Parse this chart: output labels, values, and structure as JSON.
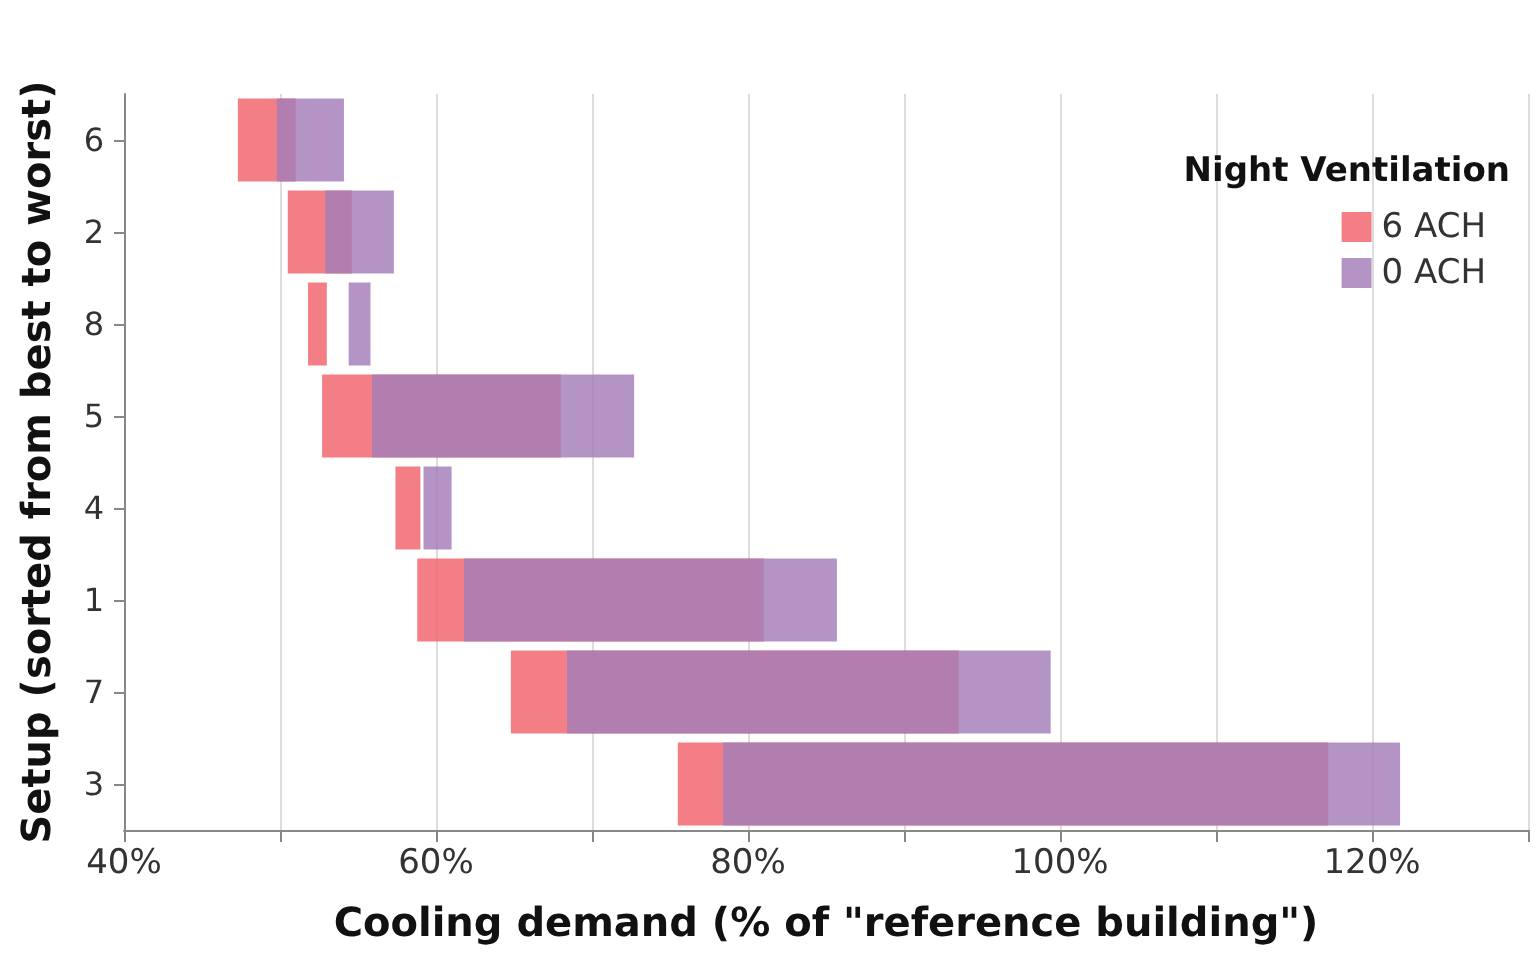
{
  "chart_data": {
    "type": "bar",
    "orientation": "horizontal",
    "xlabel": "Cooling demand (% of \"reference building\")",
    "ylabel": "Setup (sorted from best to worst)",
    "legend_title": "Night Ventilation",
    "categories": [
      "6",
      "2",
      "8",
      "5",
      "4",
      "1",
      "7",
      "3"
    ],
    "series": [
      {
        "name": "6 ACH",
        "color": "#f0626a",
        "base": [
          47.3,
          50.5,
          51.8,
          52.7,
          57.4,
          58.8,
          64.8,
          75.5
        ],
        "values": [
          3.7,
          4.1,
          1.2,
          15.3,
          1.6,
          22.2,
          28.7,
          41.7
        ]
      },
      {
        "name": "0 ACH",
        "color": "#a47cb8",
        "base": [
          49.8,
          52.9,
          54.4,
          55.9,
          59.2,
          61.8,
          68.4,
          78.4
        ],
        "values": [
          4.3,
          4.4,
          1.4,
          16.8,
          1.8,
          23.9,
          31.0,
          43.4
        ]
      }
    ],
    "xlim": [
      40,
      130
    ],
    "xticks": [
      {
        "value": 40,
        "label": "40%"
      },
      {
        "value": 50,
        "label": null
      },
      {
        "value": 60,
        "label": "60%"
      },
      {
        "value": 70,
        "label": null
      },
      {
        "value": 80,
        "label": "80%"
      },
      {
        "value": 90,
        "label": null
      },
      {
        "value": 100,
        "label": "100%"
      },
      {
        "value": 110,
        "label": null
      },
      {
        "value": 120,
        "label": "120%"
      },
      {
        "value": 130,
        "label": null
      }
    ],
    "grid": "x",
    "legend": "top right"
  }
}
